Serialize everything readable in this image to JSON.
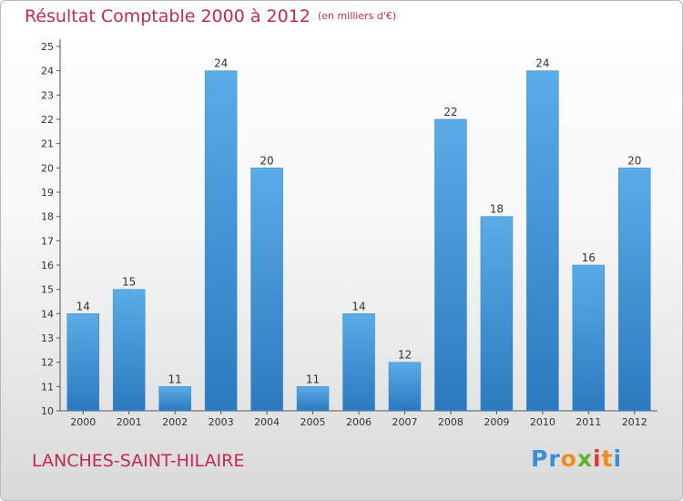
{
  "chart_data": {
    "type": "bar",
    "title": "Résultat Comptable 2000 à 2012",
    "subtitle": "(en milliers d'€)",
    "categories": [
      "2000",
      "2001",
      "2002",
      "2003",
      "2004",
      "2005",
      "2006",
      "2007",
      "2008",
      "2009",
      "2010",
      "2011",
      "2012"
    ],
    "values": [
      14,
      15,
      11,
      24,
      20,
      11,
      14,
      12,
      22,
      18,
      24,
      16,
      20
    ],
    "ylim": [
      10,
      25
    ],
    "yticks": [
      10,
      11,
      12,
      13,
      14,
      15,
      16,
      17,
      18,
      19,
      20,
      21,
      22,
      23,
      24,
      25
    ],
    "xlabel": "",
    "ylabel": "",
    "grid": false,
    "bar_color_top": "#5aace6",
    "bar_color_bottom": "#2b7ac0"
  },
  "footer": {
    "commune": "LANCHES-SAINT-HILAIRE",
    "logo_letters": [
      {
        "ch": "P",
        "color": "#3b8fd4"
      },
      {
        "ch": "r",
        "color": "#3b8fd4"
      },
      {
        "ch": "o",
        "color": "#f08a1c"
      },
      {
        "ch": "x",
        "color": "#5db12f"
      },
      {
        "ch": "i",
        "color": "#e03b2c"
      },
      {
        "ch": "t",
        "color": "#f08a1c"
      },
      {
        "ch": "i",
        "color": "#3b8fd4"
      }
    ]
  }
}
